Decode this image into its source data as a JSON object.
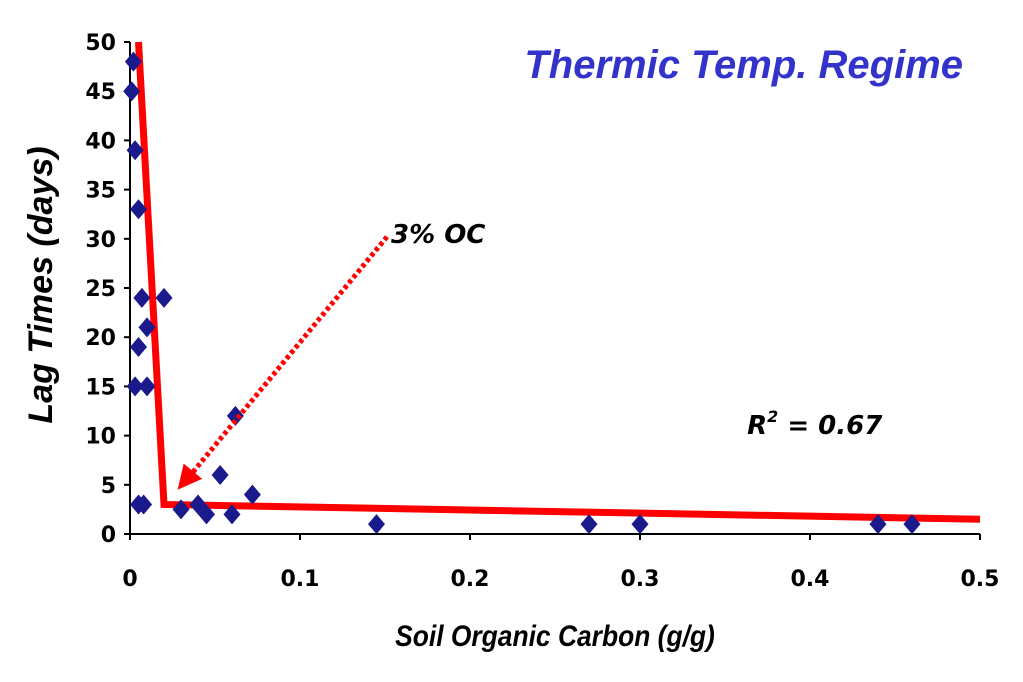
{
  "chart_data": {
    "type": "scatter",
    "title": "Thermic Temp. Regime",
    "xlabel": "Soil Organic Carbon (g/g)",
    "ylabel": "Lag Times (days)",
    "xlim": [
      0,
      0.5
    ],
    "ylim": [
      0,
      50
    ],
    "x_ticks": [
      "0",
      "0.1",
      "0.2",
      "0.3",
      "0.4",
      "0.5"
    ],
    "y_ticks": [
      "0",
      "5",
      "10",
      "15",
      "20",
      "25",
      "30",
      "35",
      "40",
      "45",
      "50"
    ],
    "x_tick_values": [
      0,
      0.1,
      0.2,
      0.3,
      0.4,
      0.5
    ],
    "y_tick_values": [
      0,
      5,
      10,
      15,
      20,
      25,
      30,
      35,
      40,
      45,
      50
    ],
    "grid": false,
    "colors": {
      "points": "#1a1a8c",
      "fit_line": "#ff0000",
      "title": "#3333cc",
      "arrow": "#ff0000"
    },
    "series": [
      {
        "marker": "diamond",
        "points": [
          [
            0.002,
            48
          ],
          [
            0.001,
            45
          ],
          [
            0.003,
            39
          ],
          [
            0.005,
            33
          ],
          [
            0.007,
            24
          ],
          [
            0.02,
            24
          ],
          [
            0.01,
            21
          ],
          [
            0.005,
            19
          ],
          [
            0.003,
            15
          ],
          [
            0.01,
            15
          ],
          [
            0.005,
            3
          ],
          [
            0.008,
            3
          ],
          [
            0.03,
            2.5
          ],
          [
            0.04,
            3
          ],
          [
            0.045,
            2
          ],
          [
            0.053,
            6
          ],
          [
            0.06,
            2
          ],
          [
            0.062,
            12
          ],
          [
            0.072,
            4
          ],
          [
            0.145,
            1
          ],
          [
            0.27,
            1
          ],
          [
            0.3,
            1
          ],
          [
            0.44,
            1
          ],
          [
            0.46,
            1
          ]
        ]
      }
    ],
    "fit_line": {
      "points": [
        [
          0.005,
          50
        ],
        [
          0.02,
          3
        ],
        [
          0.5,
          1.5
        ]
      ]
    },
    "annotations": [
      {
        "text": "3% OC",
        "x": 0.15,
        "y": 30,
        "arrow_to": [
          0.028,
          4.5
        ]
      },
      {
        "text": "R",
        "superscript": "2",
        "value_text": " = 0.67",
        "x": 0.363,
        "y": 11
      }
    ]
  }
}
